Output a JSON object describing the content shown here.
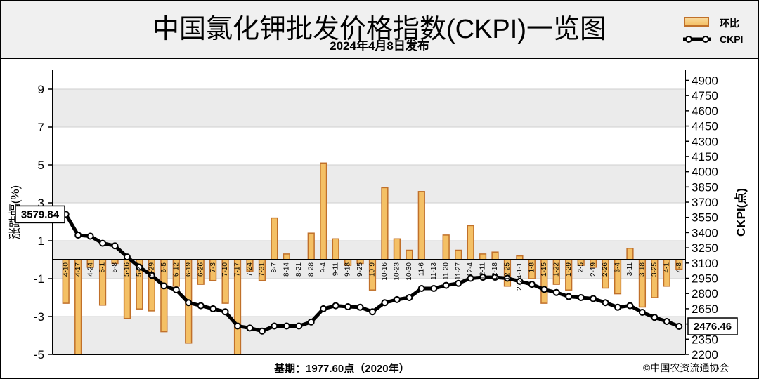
{
  "header": {
    "title": "中国氯化钾批发价格指数(CKPI)一览图",
    "subtitle": "2024年4月8日发布"
  },
  "legend": {
    "bar_label": "环比",
    "line_label": "CKPI"
  },
  "footer": {
    "base_note": "基期：1977.60点（2020年）",
    "copyright": "©中国农资流通协会"
  },
  "colors": {
    "bar_fill": "#f4c065",
    "bar_edge": "#c0702a",
    "line": "#000000",
    "plot_band": "#ebebeb",
    "header_bg": "#f0f0f0"
  },
  "chart_data": {
    "type": "bar+line",
    "x_axis_labels": [
      "4-10",
      "4-17",
      "4-24",
      "5-1",
      "5-8",
      "5-16",
      "5-22",
      "5-29",
      "6-5",
      "6-12",
      "6-19",
      "6-26",
      "7-3",
      "7-10",
      "7-17",
      "7-24",
      "7-31",
      "8-7",
      "8-14",
      "8-21",
      "8-28",
      "9-4",
      "9-11",
      "9-18",
      "9-25",
      "10-9",
      "10-16",
      "10-23",
      "10-30",
      "11-6",
      "11-13",
      "11-20",
      "11-27",
      "12-4",
      "12-11",
      "12-18",
      "12-25",
      "2024-1-1",
      "1-8",
      "1-15",
      "1-22",
      "1-29",
      "2-5",
      "2-19",
      "2-26",
      "3-4",
      "3-11",
      "3-18",
      "3-25",
      "4-1",
      "4-8"
    ],
    "bar_series": {
      "name": "环比",
      "values": [
        -2.3,
        -5.0,
        -0.4,
        -2.4,
        -0.2,
        -3.1,
        -2.6,
        -2.7,
        -3.8,
        -1.4,
        -4.4,
        -1.3,
        -1.1,
        -2.3,
        -5.0,
        -0.6,
        -1.1,
        2.2,
        0.3,
        0.0,
        1.4,
        5.1,
        1.1,
        -0.3,
        -0.2,
        -1.6,
        3.8,
        1.1,
        0.5,
        3.6,
        0.0,
        1.3,
        0.5,
        1.8,
        0.3,
        0.4,
        -1.4,
        0.2,
        -1.0,
        -2.3,
        -1.3,
        -1.6,
        -0.3,
        -0.4,
        -1.5,
        -1.8,
        0.6,
        -2.5,
        -2.0,
        -1.4,
        -0.5
      ]
    },
    "line_series": {
      "name": "CKPI",
      "values": [
        3579.84,
        3375,
        3365,
        3295,
        3270,
        3160,
        3060,
        2980,
        2875,
        2835,
        2710,
        2680,
        2650,
        2620,
        2480,
        2460,
        2430,
        2480,
        2480,
        2480,
        2520,
        2650,
        2680,
        2670,
        2665,
        2620,
        2710,
        2740,
        2760,
        2850,
        2850,
        2880,
        2900,
        2950,
        2960,
        2960,
        2950,
        2920,
        2890,
        2840,
        2810,
        2770,
        2760,
        2750,
        2710,
        2665,
        2680,
        2615,
        2565,
        2525,
        2476.46
      ]
    },
    "data_labels": {
      "first": "3579.84",
      "last": "2476.46"
    },
    "y_left": {
      "label": "涨跌幅(%)",
      "ticks": [
        9,
        7,
        5,
        3,
        1,
        -1,
        -3,
        -5
      ],
      "range": [
        -5,
        10
      ]
    },
    "y_right": {
      "label": "CKPI(点)",
      "ticks": [
        4900,
        4750,
        4600,
        4450,
        4300,
        4150,
        4000,
        3850,
        3700,
        3550,
        3400,
        3250,
        3100,
        2950,
        2800,
        2650,
        2500,
        2350,
        2200
      ],
      "range": [
        2200,
        5000
      ]
    },
    "grid": true
  }
}
